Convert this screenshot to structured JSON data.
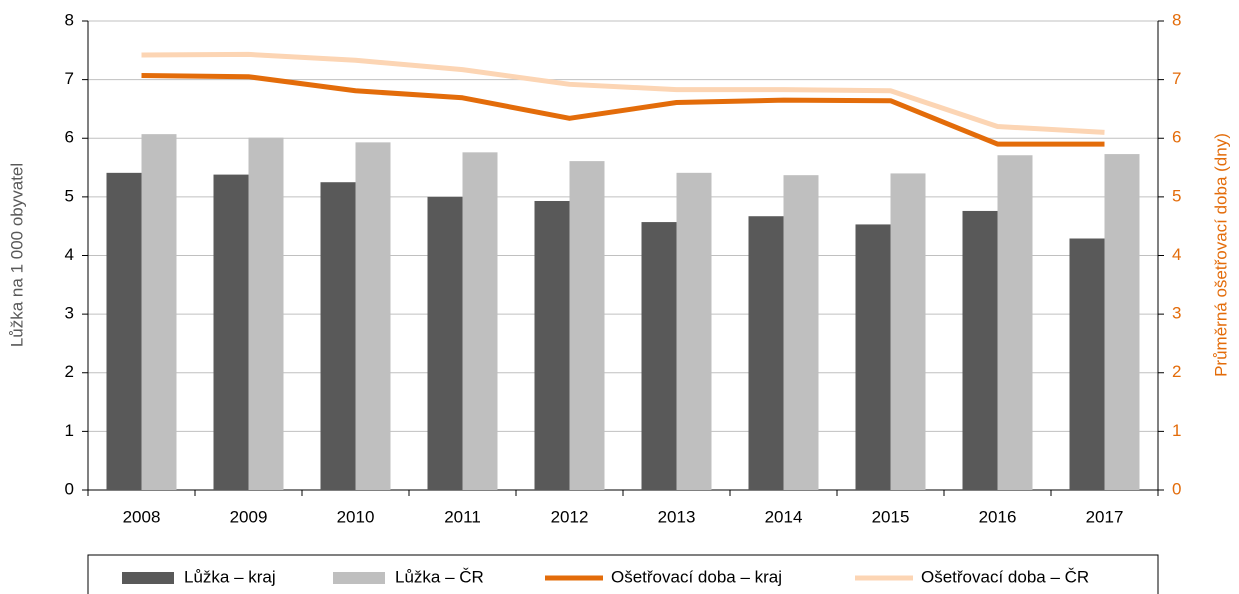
{
  "chart_data": {
    "type": "bar",
    "categories": [
      "2008",
      "2009",
      "2010",
      "2011",
      "2012",
      "2013",
      "2014",
      "2015",
      "2016",
      "2017"
    ],
    "ylabel": "Lůžka na 1 000 obyvatel",
    "y2label": "Průměrná ošetřovací doba (dny)",
    "ylim": [
      0,
      8
    ],
    "yticks": [
      0,
      1,
      2,
      3,
      4,
      5,
      6,
      7,
      8
    ],
    "y2lim": [
      0,
      8
    ],
    "y2ticks": [
      0,
      1,
      2,
      3,
      4,
      5,
      6,
      7,
      8
    ],
    "grid": true,
    "legend": "bottom",
    "series": [
      {
        "name": "Lůžka – kraj",
        "type": "bar",
        "color": "#595959",
        "values": [
          5.41,
          5.38,
          5.25,
          5.0,
          4.93,
          4.57,
          4.67,
          4.53,
          4.76,
          4.29
        ]
      },
      {
        "name": "Lůžka – ČR",
        "type": "bar",
        "color": "#bfbfbf",
        "values": [
          6.07,
          6.01,
          5.93,
          5.76,
          5.61,
          5.41,
          5.37,
          5.4,
          5.71,
          5.73
        ]
      },
      {
        "name": "Ošetřovací doba – kraj",
        "type": "line",
        "axis": "y2",
        "color": "#e36c0a",
        "values": [
          7.07,
          7.05,
          6.81,
          6.69,
          6.34,
          6.61,
          6.65,
          6.64,
          5.9,
          5.9
        ]
      },
      {
        "name": "Ošetřovací doba – ČR",
        "type": "line",
        "axis": "y2",
        "color": "#fcd5b4",
        "values": [
          7.42,
          7.43,
          7.33,
          7.17,
          6.92,
          6.83,
          6.83,
          6.81,
          6.2,
          6.1
        ]
      }
    ]
  }
}
